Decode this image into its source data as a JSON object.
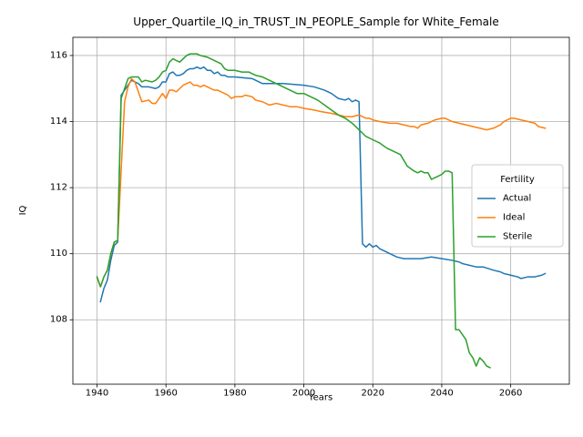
{
  "chart_data": {
    "type": "line",
    "title": "Upper_Quartile_IQ_in_TRUST_IN_PEOPLE_Sample for White_Female",
    "xlabel": "Years",
    "ylabel": "IQ",
    "xlim": [
      1933,
      2077
    ],
    "ylim": [
      106.05,
      116.55
    ],
    "xticks": [
      1940,
      1960,
      1980,
      2000,
      2020,
      2040,
      2060
    ],
    "yticks": [
      108,
      110,
      112,
      114,
      116
    ],
    "grid": true,
    "legend": {
      "title": "Fertility",
      "placement": "center-right"
    },
    "series": [
      {
        "name": "Actual",
        "color": "#1f77b4",
        "x": [
          1941,
          1942,
          1943,
          1944,
          1945,
          1946,
          1947,
          1948,
          1949,
          1950,
          1952,
          1953,
          1955,
          1957,
          1958,
          1959,
          1960,
          1961,
          1962,
          1963,
          1964,
          1965,
          1966,
          1967,
          1968,
          1969,
          1970,
          1971,
          1972,
          1973,
          1974,
          1975,
          1976,
          1977,
          1978,
          1980,
          1985,
          1988,
          1990,
          1994,
          2000,
          2003,
          2006,
          2008,
          2010,
          2012,
          2013,
          2014,
          2015,
          2016,
          2017,
          2018,
          2019,
          2020,
          2021,
          2022,
          2023,
          2025,
          2027,
          2029,
          2032,
          2034,
          2037,
          2040,
          2043,
          2045,
          2046,
          2048,
          2050,
          2052,
          2055,
          2057,
          2058,
          2060,
          2062,
          2063,
          2065,
          2067,
          2069,
          2070
        ],
        "values": [
          108.55,
          108.95,
          109.2,
          109.8,
          110.25,
          110.35,
          114.8,
          114.95,
          115.1,
          115.25,
          115.15,
          115.05,
          115.05,
          115.0,
          115.05,
          115.2,
          115.2,
          115.45,
          115.5,
          115.4,
          115.4,
          115.45,
          115.55,
          115.6,
          115.6,
          115.65,
          115.6,
          115.65,
          115.55,
          115.55,
          115.45,
          115.5,
          115.4,
          115.4,
          115.35,
          115.35,
          115.3,
          115.15,
          115.15,
          115.15,
          115.1,
          115.05,
          114.95,
          114.85,
          114.7,
          114.65,
          114.7,
          114.6,
          114.65,
          114.6,
          110.3,
          110.2,
          110.3,
          110.2,
          110.25,
          110.15,
          110.1,
          110.0,
          109.9,
          109.85,
          109.85,
          109.85,
          109.9,
          109.85,
          109.8,
          109.75,
          109.7,
          109.65,
          109.6,
          109.6,
          109.5,
          109.45,
          109.4,
          109.35,
          109.3,
          109.25,
          109.3,
          109.3,
          109.35,
          109.4
        ]
      },
      {
        "name": "Ideal",
        "color": "#ff7f0e",
        "x": [
          1940,
          1941,
          1942,
          1943,
          1944,
          1945,
          1946,
          1947,
          1948,
          1949,
          1950,
          1951,
          1952,
          1953,
          1955,
          1956,
          1957,
          1958,
          1959,
          1960,
          1961,
          1962,
          1963,
          1964,
          1965,
          1966,
          1967,
          1968,
          1969,
          1970,
          1971,
          1972,
          1973,
          1974,
          1975,
          1976,
          1977,
          1978,
          1979,
          1980,
          1982,
          1983,
          1985,
          1986,
          1988,
          1990,
          1992,
          1994,
          1996,
          1998,
          2000,
          2003,
          2005,
          2008,
          2010,
          2012,
          2014,
          2016,
          2017,
          2018,
          2019,
          2020,
          2022,
          2025,
          2027,
          2029,
          2031,
          2032,
          2033,
          2034,
          2036,
          2038,
          2040,
          2041,
          2043,
          2045,
          2047,
          2049,
          2051,
          2053,
          2055,
          2056,
          2057,
          2058,
          2059,
          2060,
          2061,
          2063,
          2065,
          2067,
          2068,
          2070
        ],
        "values": [
          109.3,
          109.0,
          109.3,
          109.5,
          110.0,
          110.35,
          110.4,
          112.5,
          114.6,
          115.05,
          115.3,
          115.2,
          114.9,
          114.6,
          114.65,
          114.55,
          114.55,
          114.7,
          114.85,
          114.7,
          114.95,
          114.95,
          114.9,
          115.0,
          115.1,
          115.15,
          115.2,
          115.1,
          115.1,
          115.05,
          115.1,
          115.05,
          115.0,
          114.95,
          114.95,
          114.9,
          114.85,
          114.8,
          114.7,
          114.75,
          114.75,
          114.8,
          114.75,
          114.65,
          114.6,
          114.5,
          114.55,
          114.5,
          114.45,
          114.45,
          114.4,
          114.35,
          114.3,
          114.25,
          114.2,
          114.15,
          114.15,
          114.2,
          114.15,
          114.1,
          114.1,
          114.05,
          114.0,
          113.95,
          113.95,
          113.9,
          113.85,
          113.85,
          113.8,
          113.9,
          113.95,
          114.05,
          114.1,
          114.1,
          114.0,
          113.95,
          113.9,
          113.85,
          113.8,
          113.75,
          113.8,
          113.85,
          113.9,
          114.0,
          114.05,
          114.1,
          114.1,
          114.05,
          114.0,
          113.95,
          113.85,
          113.8
        ]
      },
      {
        "name": "Sterile",
        "color": "#2ca02c",
        "x": [
          1940,
          1941,
          1942,
          1943,
          1944,
          1945,
          1946,
          1947,
          1948,
          1949,
          1950,
          1952,
          1953,
          1954,
          1956,
          1957,
          1958,
          1959,
          1960,
          1961,
          1962,
          1963,
          1964,
          1965,
          1966,
          1967,
          1968,
          1969,
          1970,
          1972,
          1974,
          1976,
          1977,
          1978,
          1979,
          1980,
          1982,
          1984,
          1986,
          1988,
          1990,
          1992,
          1994,
          1996,
          1998,
          2000,
          2002,
          2004,
          2006,
          2008,
          2010,
          2012,
          2014,
          2016,
          2018,
          2020,
          2022,
          2024,
          2026,
          2028,
          2030,
          2032,
          2033,
          2034,
          2035,
          2036,
          2037,
          2038,
          2039,
          2040,
          2041,
          2042,
          2043,
          2044,
          2045,
          2046,
          2047,
          2048,
          2049,
          2050,
          2051,
          2052,
          2053,
          2054
        ],
        "values": [
          109.3,
          109.0,
          109.3,
          109.5,
          110.0,
          110.35,
          110.4,
          114.7,
          115.0,
          115.3,
          115.35,
          115.35,
          115.2,
          115.25,
          115.2,
          115.25,
          115.35,
          115.5,
          115.55,
          115.8,
          115.9,
          115.85,
          115.8,
          115.9,
          116.0,
          116.05,
          116.05,
          116.05,
          116.0,
          115.95,
          115.85,
          115.75,
          115.6,
          115.55,
          115.55,
          115.55,
          115.5,
          115.5,
          115.4,
          115.35,
          115.25,
          115.15,
          115.05,
          114.95,
          114.85,
          114.85,
          114.75,
          114.65,
          114.5,
          114.35,
          114.2,
          114.1,
          113.95,
          113.75,
          113.55,
          113.45,
          113.35,
          113.2,
          113.1,
          113.0,
          112.65,
          112.5,
          112.45,
          112.5,
          112.45,
          112.45,
          112.25,
          112.3,
          112.35,
          112.4,
          112.5,
          112.5,
          112.45,
          107.7,
          107.7,
          107.55,
          107.4,
          107.0,
          106.85,
          106.6,
          106.85,
          106.75,
          106.6,
          106.55
        ]
      }
    ]
  }
}
